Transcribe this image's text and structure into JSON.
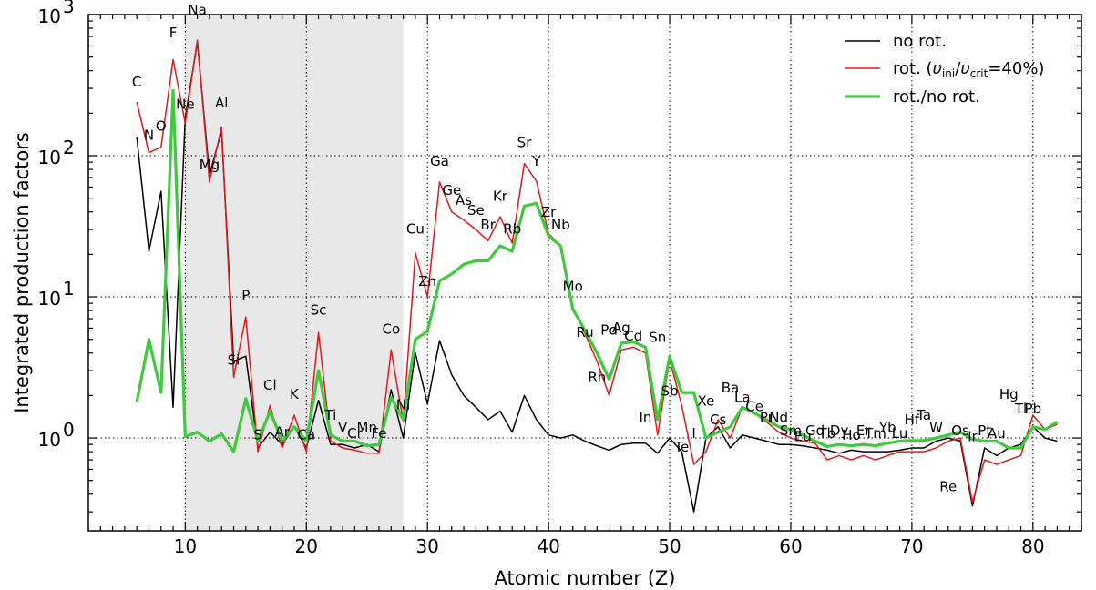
{
  "chart_data": {
    "type": "line",
    "xlabel": "Atomic number (Z)",
    "ylabel": "Integrated production factors",
    "xlim": [
      2,
      84
    ],
    "ylim": [
      0.22,
      1000
    ],
    "yscale": "log",
    "grid": true,
    "legend_position": "top-right",
    "x_ticks": [
      10,
      20,
      30,
      40,
      50,
      60,
      70,
      80
    ],
    "y_ticks": [
      {
        "value": 1,
        "base": "10",
        "exp": "0"
      },
      {
        "value": 10,
        "base": "10",
        "exp": "1"
      },
      {
        "value": 100,
        "base": "10",
        "exp": "2"
      },
      {
        "value": 1000,
        "base": "10",
        "exp": "3"
      }
    ],
    "shaded_region": {
      "x0": 10,
      "x1": 28,
      "color": "#e8e8e8"
    },
    "x": [
      6,
      7,
      8,
      9,
      10,
      11,
      12,
      13,
      14,
      15,
      16,
      17,
      18,
      19,
      20,
      21,
      22,
      23,
      24,
      25,
      26,
      27,
      28,
      29,
      30,
      31,
      32,
      33,
      34,
      35,
      36,
      37,
      38,
      39,
      40,
      41,
      42,
      43,
      44,
      45,
      46,
      47,
      48,
      49,
      50,
      51,
      52,
      53,
      54,
      55,
      56,
      57,
      58,
      59,
      60,
      61,
      62,
      63,
      64,
      65,
      66,
      67,
      68,
      69,
      70,
      71,
      72,
      73,
      74,
      75,
      76,
      77,
      78,
      79,
      80,
      81,
      82
    ],
    "series": [
      {
        "name": "no rot.",
        "color": "#000000",
        "width": 1.5,
        "values": [
          135,
          21,
          56,
          1.65,
          185,
          640,
          73,
          150,
          3.5,
          3.8,
          0.85,
          1.1,
          0.9,
          1.2,
          0.85,
          1.85,
          0.9,
          0.9,
          0.85,
          0.9,
          0.8,
          2.2,
          1.0,
          4.0,
          1.75,
          4.9,
          2.8,
          2.0,
          1.65,
          1.35,
          1.55,
          1.1,
          2.0,
          1.35,
          1.05,
          1.0,
          1.05,
          0.95,
          0.88,
          0.82,
          0.9,
          0.92,
          0.92,
          0.78,
          1.0,
          0.8,
          0.3,
          1.0,
          1.2,
          0.85,
          1.05,
          1.0,
          0.95,
          0.9,
          0.9,
          0.88,
          0.85,
          0.82,
          0.78,
          0.82,
          0.8,
          0.8,
          0.8,
          0.82,
          0.85,
          0.85,
          0.95,
          1.0,
          0.95,
          0.33,
          0.85,
          0.75,
          0.85,
          0.9,
          1.2,
          1.0,
          0.95
        ]
      },
      {
        "name": "rot. (υini/υcrit = 40%)",
        "color": "#e01a1a",
        "width": 1.5,
        "values": [
          240,
          105,
          115,
          480,
          170,
          660,
          65,
          160,
          2.7,
          7.2,
          0.8,
          1.7,
          0.85,
          1.45,
          0.8,
          5.6,
          0.95,
          0.85,
          0.82,
          0.78,
          0.78,
          4.2,
          1.3,
          20.5,
          10.0,
          65,
          40,
          35,
          30,
          25,
          37,
          24,
          88,
          66,
          28,
          23,
          8.5,
          5.5,
          3.5,
          2.0,
          4.2,
          4.4,
          4.0,
          1.05,
          3.6,
          1.7,
          0.65,
          0.8,
          1.35,
          1.0,
          1.65,
          1.5,
          1.3,
          1.1,
          1.0,
          0.95,
          0.92,
          0.7,
          0.75,
          0.7,
          0.75,
          0.7,
          0.75,
          0.8,
          0.8,
          0.8,
          0.85,
          0.95,
          1.0,
          0.35,
          0.7,
          0.65,
          0.7,
          0.75,
          1.45,
          1.15,
          1.25
        ]
      },
      {
        "name": "rot./no rot.",
        "color": "#3ec93e",
        "width": 3.2,
        "values": [
          1.8,
          5.0,
          2.1,
          290,
          1.02,
          1.1,
          0.95,
          1.07,
          0.8,
          1.9,
          0.95,
          1.55,
          0.95,
          1.2,
          0.95,
          3.0,
          1.05,
          0.95,
          0.95,
          0.88,
          0.9,
          1.95,
          1.35,
          5.0,
          5.7,
          13.0,
          14.5,
          17,
          18,
          18,
          23,
          21,
          44,
          46,
          27,
          23,
          8.2,
          5.8,
          4.0,
          2.6,
          4.7,
          4.8,
          4.4,
          1.35,
          3.8,
          2.1,
          2.1,
          1.0,
          1.1,
          1.2,
          1.65,
          1.5,
          1.35,
          1.2,
          1.15,
          1.05,
          0.95,
          0.87,
          0.9,
          0.88,
          0.9,
          0.88,
          0.92,
          0.95,
          0.96,
          0.96,
          1.0,
          1.05,
          1.1,
          0.98,
          0.95,
          0.95,
          0.85,
          0.85,
          1.2,
          1.15,
          1.3
        ]
      }
    ],
    "element_labels": [
      {
        "t": "C",
        "z": 6,
        "y": 310
      },
      {
        "t": "N",
        "z": 7,
        "y": 130
      },
      {
        "t": "O",
        "z": 8,
        "y": 150
      },
      {
        "t": "F",
        "z": 9,
        "y": 690
      },
      {
        "t": "Ne",
        "z": 10,
        "y": 215
      },
      {
        "t": "Na",
        "z": 11,
        "y": 1000
      },
      {
        "t": "Mg",
        "z": 12,
        "y": 80
      },
      {
        "t": "Al",
        "z": 13,
        "y": 220
      },
      {
        "t": "Si",
        "z": 14,
        "y": 3.3
      },
      {
        "t": "P",
        "z": 15,
        "y": 9.5
      },
      {
        "t": "S",
        "z": 16,
        "y": 0.98
      },
      {
        "t": "Cl",
        "z": 17,
        "y": 2.2
      },
      {
        "t": "Ar",
        "z": 18,
        "y": 1.02
      },
      {
        "t": "K",
        "z": 19,
        "y": 1.9
      },
      {
        "t": "Ca",
        "z": 20,
        "y": 0.98
      },
      {
        "t": "Sc",
        "z": 21,
        "y": 7.5
      },
      {
        "t": "Ti",
        "z": 22,
        "y": 1.35
      },
      {
        "t": "V",
        "z": 23,
        "y": 1.1
      },
      {
        "t": "Cr",
        "z": 24,
        "y": 1.0
      },
      {
        "t": "Mn",
        "z": 25,
        "y": 1.1
      },
      {
        "t": "Fe",
        "z": 26,
        "y": 1.0
      },
      {
        "t": "Co",
        "z": 27,
        "y": 5.5
      },
      {
        "t": "Ni",
        "z": 28,
        "y": 1.6
      },
      {
        "t": "Cu",
        "z": 29,
        "y": 28
      },
      {
        "t": "Zn",
        "z": 30,
        "y": 12
      },
      {
        "t": "Ga",
        "z": 31,
        "y": 85
      },
      {
        "t": "Ge",
        "z": 32,
        "y": 53
      },
      {
        "t": "As",
        "z": 33,
        "y": 45
      },
      {
        "t": "Se",
        "z": 34,
        "y": 38
      },
      {
        "t": "Br",
        "z": 35,
        "y": 30
      },
      {
        "t": "Kr",
        "z": 36,
        "y": 48
      },
      {
        "t": "Rb",
        "z": 37,
        "y": 28
      },
      {
        "t": "Sr",
        "z": 38,
        "y": 115
      },
      {
        "t": "Y",
        "z": 39,
        "y": 85
      },
      {
        "t": "Zr",
        "z": 40,
        "y": 37
      },
      {
        "t": "Nb",
        "z": 41,
        "y": 30
      },
      {
        "t": "Mo",
        "z": 42,
        "y": 11
      },
      {
        "t": "Ru",
        "z": 43,
        "y": 5.2
      },
      {
        "t": "Rh",
        "z": 44,
        "y": 2.5
      },
      {
        "t": "Pd",
        "z": 45,
        "y": 5.4
      },
      {
        "t": "Ag",
        "z": 46,
        "y": 5.6
      },
      {
        "t": "Cd",
        "z": 47,
        "y": 4.9
      },
      {
        "t": "In",
        "z": 48,
        "y": 1.3
      },
      {
        "t": "Sn",
        "z": 49,
        "y": 4.8
      },
      {
        "t": "Sb",
        "z": 50,
        "y": 2.0
      },
      {
        "t": "Te",
        "z": 51,
        "y": 0.8
      },
      {
        "t": "I",
        "z": 52,
        "y": 1.0
      },
      {
        "t": "Xe",
        "z": 53,
        "y": 1.7
      },
      {
        "t": "Cs",
        "z": 54,
        "y": 1.25
      },
      {
        "t": "Ba",
        "z": 55,
        "y": 2.1
      },
      {
        "t": "La",
        "z": 56,
        "y": 1.8
      },
      {
        "t": "Ce",
        "z": 57,
        "y": 1.55
      },
      {
        "t": "Pr",
        "z": 58,
        "y": 1.3
      },
      {
        "t": "Nd",
        "z": 59,
        "y": 1.3
      },
      {
        "t": "Sm",
        "z": 60,
        "y": 1.05
      },
      {
        "t": "Eu",
        "z": 61,
        "y": 0.95
      },
      {
        "t": "Gd",
        "z": 62,
        "y": 1.05
      },
      {
        "t": "Tb",
        "z": 63,
        "y": 1.0
      },
      {
        "t": "Dy",
        "z": 64,
        "y": 1.05
      },
      {
        "t": "Ho",
        "z": 65,
        "y": 0.97
      },
      {
        "t": "Er",
        "z": 66,
        "y": 1.05
      },
      {
        "t": "Tm",
        "z": 67,
        "y": 1.0
      },
      {
        "t": "Yb",
        "z": 68,
        "y": 1.1
      },
      {
        "t": "Lu",
        "z": 69,
        "y": 1.0
      },
      {
        "t": "Hf",
        "z": 70,
        "y": 1.25
      },
      {
        "t": "Ta",
        "z": 71,
        "y": 1.35
      },
      {
        "t": "W",
        "z": 72,
        "y": 1.1
      },
      {
        "t": "Re",
        "z": 73,
        "y": 0.42
      },
      {
        "t": "Os",
        "z": 74,
        "y": 1.05
      },
      {
        "t": "Ir",
        "z": 75,
        "y": 0.95
      },
      {
        "t": "Pt",
        "z": 76,
        "y": 1.05
      },
      {
        "t": "Au",
        "z": 77,
        "y": 1.0
      },
      {
        "t": "Hg",
        "z": 78,
        "y": 1.9
      },
      {
        "t": "Tl",
        "z": 79,
        "y": 1.5
      },
      {
        "t": "Pb",
        "z": 80,
        "y": 1.5
      }
    ]
  }
}
